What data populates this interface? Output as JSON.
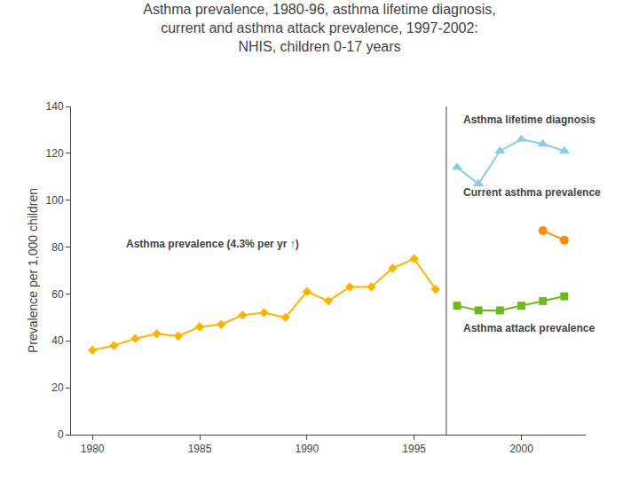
{
  "chart_data": {
    "type": "line",
    "title": "Asthma prevalence, 1980-96, asthma lifetime diagnosis,\ncurrent and asthma attack prevalence, 1997-2002:\nNHIS, children 0-17 years",
    "y_label": "Prevalence per 1,000 children",
    "xlim": [
      1979,
      2003
    ],
    "xticks": [
      1980,
      1985,
      1990,
      1995,
      2000
    ],
    "ylim": [
      0,
      140
    ],
    "yticks": [
      0,
      20,
      40,
      60,
      80,
      100,
      120,
      140
    ],
    "grid": false,
    "series": [
      {
        "color": "#FFB300",
        "marker": "diamond",
        "x": [
          1980,
          1981,
          1982,
          1983,
          1984,
          1985,
          1986,
          1987,
          1988,
          1989,
          1990,
          1991,
          1992,
          1993,
          1994,
          1995,
          1996
        ],
        "values": [
          36,
          38,
          41,
          43,
          42,
          46,
          47,
          51,
          52,
          50,
          61,
          57,
          63,
          63,
          71,
          75,
          62
        ]
      },
      {
        "color": "#87CEEB",
        "marker": "triangle",
        "x": [
          1997,
          1998,
          1999,
          2000,
          2001,
          2002
        ],
        "values": [
          114,
          107,
          121,
          126,
          124,
          121
        ]
      },
      {
        "color": "#FF8C00",
        "marker": "circle",
        "x": [
          2001,
          2002
        ],
        "values": [
          87,
          83
        ]
      },
      {
        "color": "#6DBB1A",
        "marker": "square",
        "x": [
          1997,
          1998,
          1999,
          2000,
          2001,
          2002
        ],
        "values": [
          55,
          53,
          53,
          55,
          57,
          59
        ]
      }
    ],
    "divider_x": 1996.5,
    "annotations": [
      {
        "text": "Asthma lifetime diagnosis"
      },
      {
        "text": "Current asthma prevalence"
      },
      {
        "text": "Asthma prevalence (4.3% per yr ↑)"
      },
      {
        "text": "Asthma attack prevalence"
      }
    ]
  }
}
